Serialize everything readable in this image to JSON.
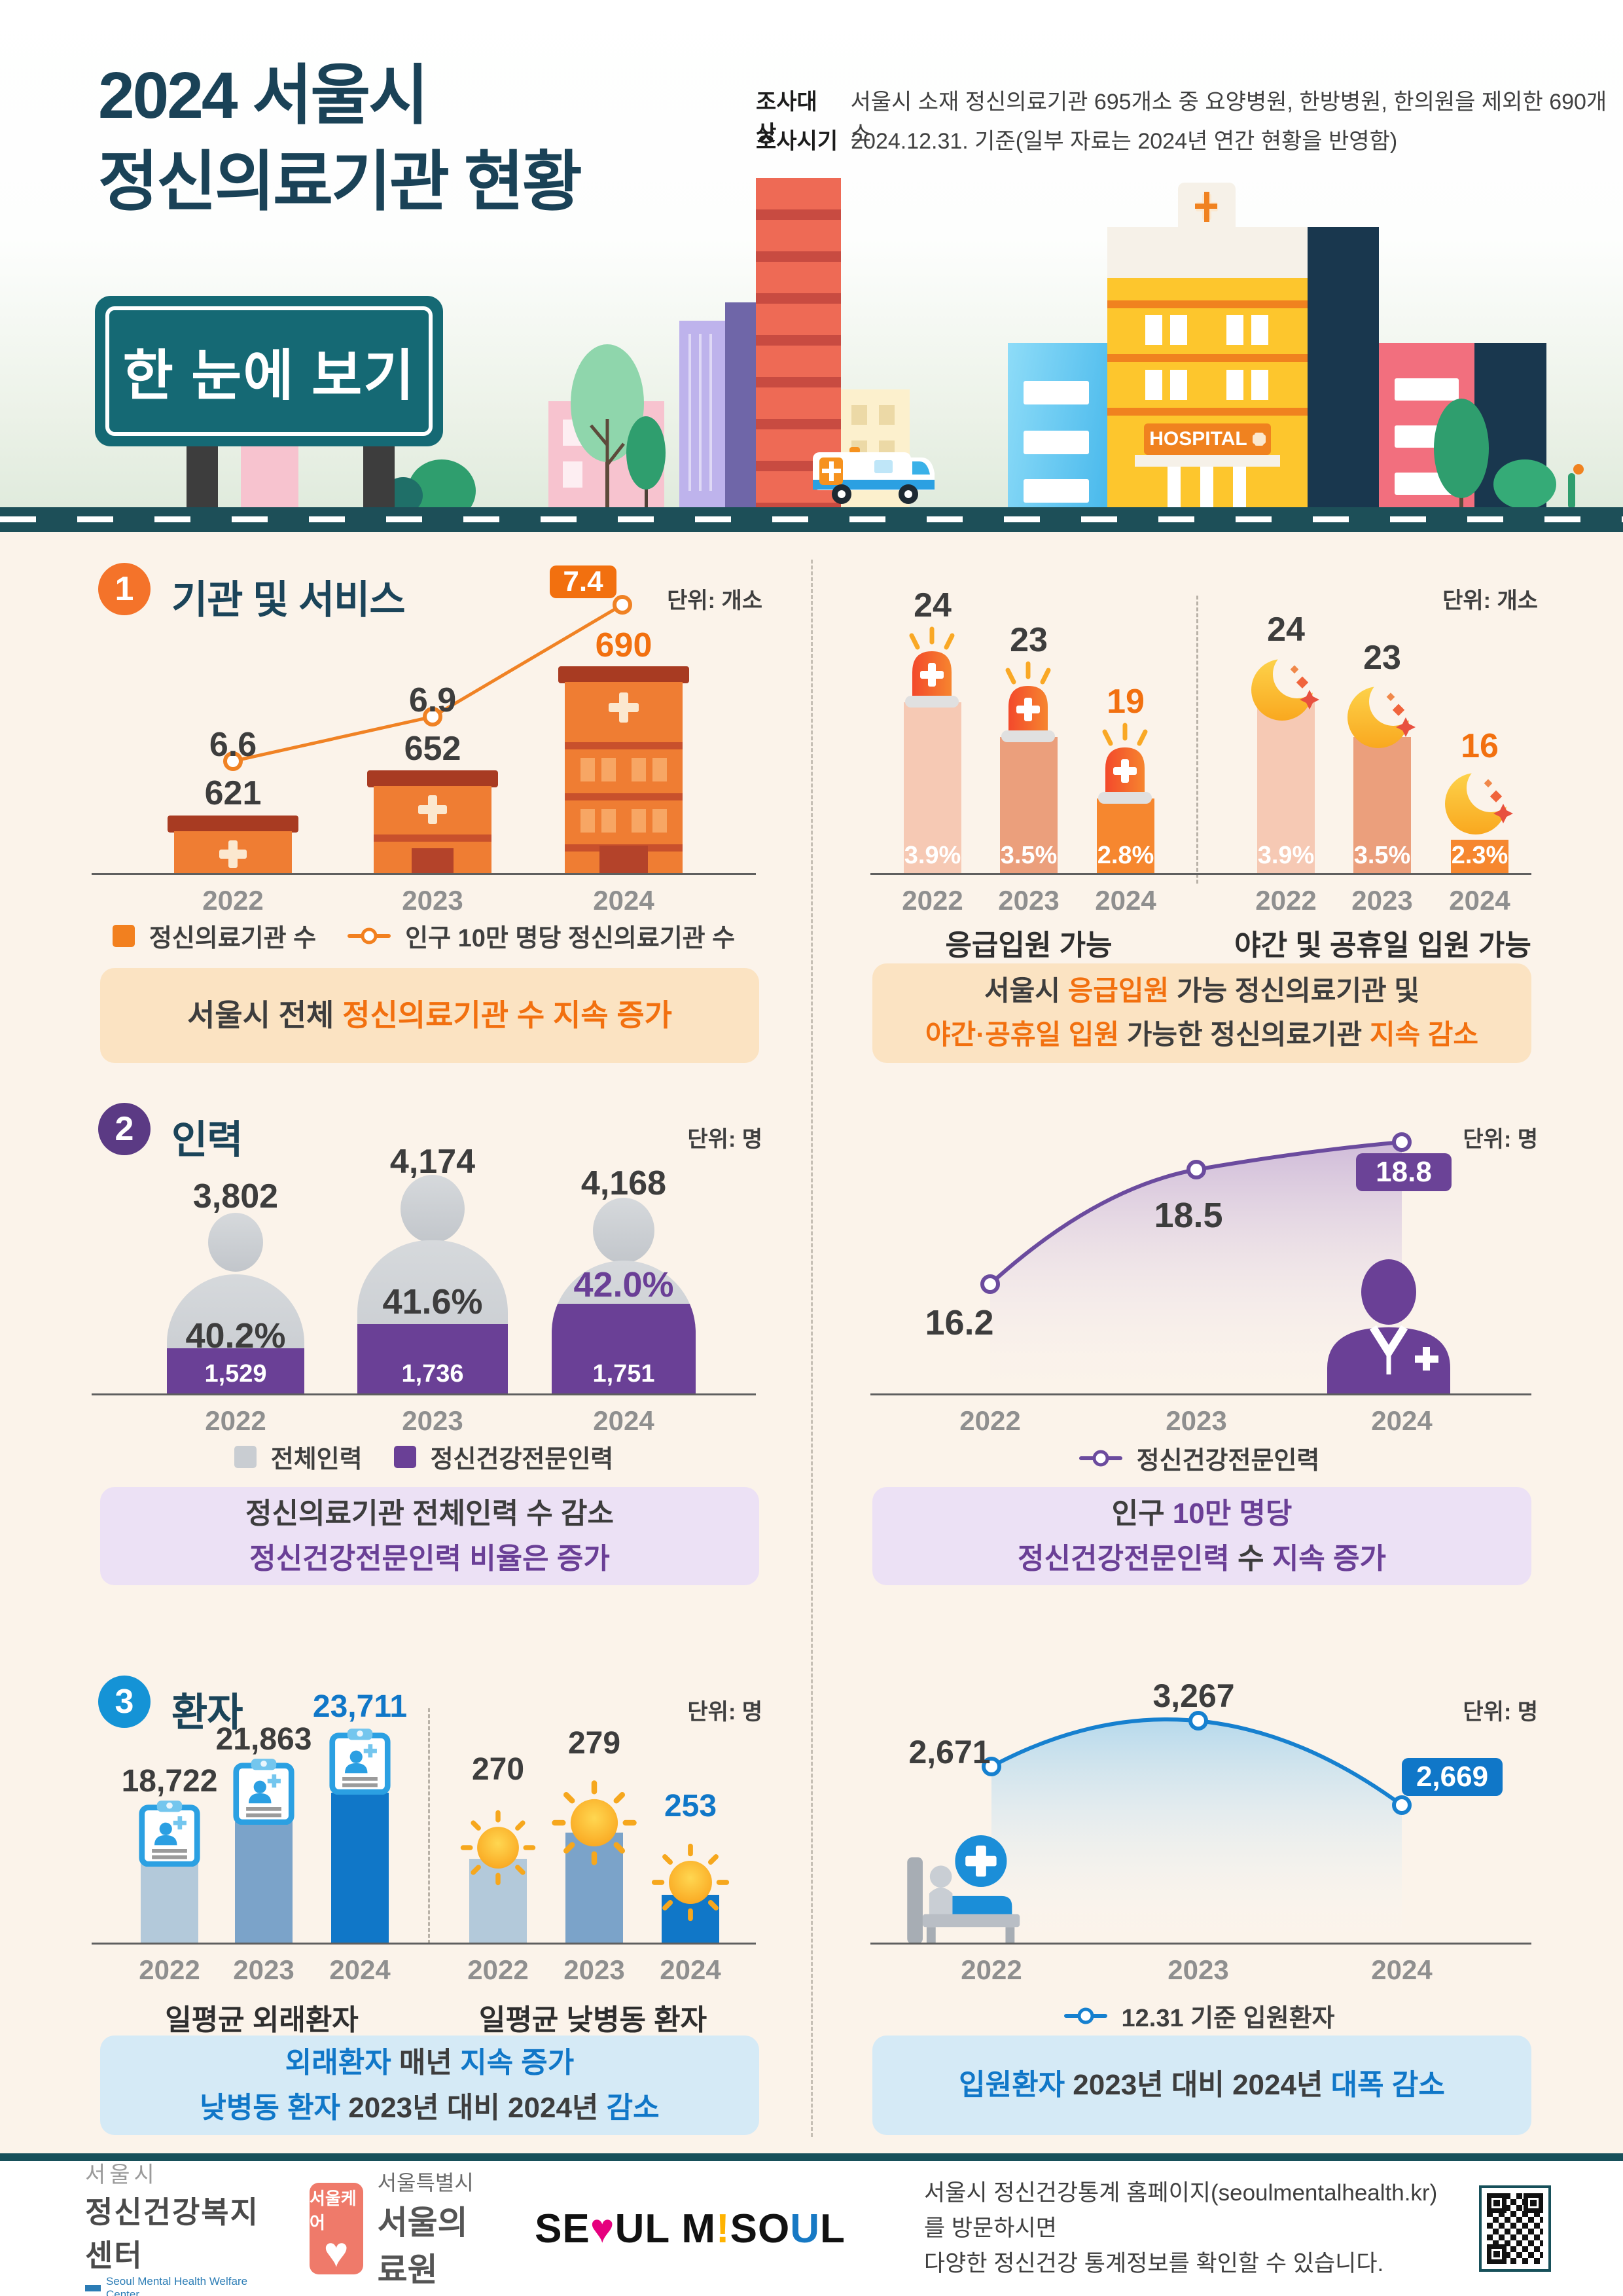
{
  "years": [
    "2022",
    "2023",
    "2024"
  ],
  "header": {
    "title1": "2024 서울시",
    "title2": "정신의료기관 현황",
    "survey1_label": "조사대상",
    "survey1": "서울시 소재 정신의료기관 695개소 중 요양병원, 한방병원, 한의원을 제외한 690개소",
    "survey2_label": "조사시기",
    "survey2": "2024.12.31. 기준(일부 자료는 2024년 연간 현황을 반영함)",
    "sign": "한 눈에 보기",
    "hospital": "HOSPITAL"
  },
  "sections": {
    "s1": {
      "number": "1",
      "title": "기관 및 서비스",
      "unit": "단위: 개소",
      "left": {
        "bars": [
          "621",
          "652",
          "690"
        ],
        "line": [
          "6.6",
          "6.9",
          "7.4"
        ],
        "legend_bar": "정신의료기관 수",
        "legend_line": "인구 10만 명당 정신의료기관 수",
        "caption": [
          [
            {
              "t": "서울시 전체 "
            },
            {
              "t": "정신의료기관 수 지속 증가",
              "a": true
            }
          ]
        ]
      },
      "right": {
        "group1": {
          "label": "응급입원 가능",
          "values": [
            "24",
            "23",
            "19"
          ],
          "pcts": [
            "3.9%",
            "3.5%",
            "2.8%"
          ]
        },
        "group2": {
          "label": "야간 및 공휴일 입원 가능",
          "values": [
            "24",
            "23",
            "16"
          ],
          "pcts": [
            "3.9%",
            "3.5%",
            "2.3%"
          ]
        },
        "caption": [
          [
            {
              "t": "서울시 "
            },
            {
              "t": "응급입원",
              "a": true
            },
            {
              "t": " 가능 정신의료기관 및"
            }
          ],
          [
            {
              "t": "야간·공휴일 입원",
              "a": true
            },
            {
              "t": " 가능한 정신의료기관 "
            },
            {
              "t": "지속 감소",
              "a": true
            }
          ]
        ]
      }
    },
    "s2": {
      "number": "2",
      "title": "인력",
      "unit": "단위: 명",
      "left": {
        "totals": [
          "3,802",
          "4,174",
          "4,168"
        ],
        "ratios": [
          "40.2%",
          "41.6%",
          "42.0%"
        ],
        "pros": [
          "1,529",
          "1,736",
          "1,751"
        ],
        "legend_total": "전체인력",
        "legend_pro": "정신건강전문인력",
        "caption": [
          [
            {
              "t": "정신의료기관 전체인력 수 감소"
            }
          ],
          [
            {
              "t": "정신건강전문인력 비율은 증가",
              "a": true
            }
          ]
        ]
      },
      "right": {
        "values": [
          "16.2",
          "18.5",
          "18.8"
        ],
        "legend": "정신건강전문인력",
        "caption": [
          [
            {
              "t": "인구 "
            },
            {
              "t": "10만 명당",
              "a": true
            }
          ],
          [
            {
              "t": "정신건강전문인력",
              "a": true
            },
            {
              "t": " 수 "
            },
            {
              "t": "지속 증가",
              "a": true
            }
          ]
        ]
      }
    },
    "s3": {
      "number": "3",
      "title": "환자",
      "unit": "단위: 명",
      "left": {
        "group1": {
          "label": "일평균 외래환자",
          "values": [
            "18,722",
            "21,863",
            "23,711"
          ]
        },
        "group2": {
          "label": "일평균 낮병동 환자",
          "values": [
            "270",
            "279",
            "253"
          ]
        },
        "caption": [
          [
            {
              "t": "외래환자",
              "a": true
            },
            {
              "t": " 매년 "
            },
            {
              "t": "지속 증가",
              "a": true
            }
          ],
          [
            {
              "t": "낮병동 환자",
              "a": true
            },
            {
              "t": " 2023년 대비 2024년 "
            },
            {
              "t": "감소",
              "a": true
            }
          ]
        ]
      },
      "right": {
        "values": [
          "2,671",
          "3,267",
          "2,669"
        ],
        "legend": "12.31 기준 입원환자",
        "caption": [
          [
            {
              "t": "입원환자",
              "a": true
            },
            {
              "t": " 2023년 대비 2024년 "
            },
            {
              "t": "대폭 감소",
              "a": true
            }
          ]
        ]
      }
    }
  },
  "footer": {
    "org1": {
      "top": "서울시",
      "bottom": "정신건강복지센터",
      "en": "Seoul Mental Health Welfare Center"
    },
    "org2": {
      "badge": "서울케어",
      "line1": "서울특별시",
      "line2": "서울의료원"
    },
    "brand": {
      "p1": "SE",
      "heart": "♥",
      "p2": "UL M",
      "bang": "!",
      "p3": "SO",
      "u": "U",
      "p4": "L"
    },
    "note1": "서울시 정신건강통계 홈페이지(seoulmentalhealth.kr)를 방문하시면",
    "note2": "다양한 정신건강 통계정보를 확인할 수 있습니다."
  },
  "chart_data": [
    {
      "type": "bar",
      "title": "정신의료기관 수 / 인구 10만 명당 정신의료기관 수",
      "unit": "개소",
      "categories": [
        2022,
        2023,
        2024
      ],
      "series": [
        {
          "name": "정신의료기관 수",
          "type": "bar",
          "values": [
            621,
            652,
            690
          ]
        },
        {
          "name": "인구 10만 명당 정신의료기관 수",
          "type": "line",
          "values": [
            6.6,
            6.9,
            7.4
          ]
        }
      ],
      "legend_position": "bottom"
    },
    {
      "type": "bar",
      "title": "응급입원 가능",
      "unit": "개소",
      "categories": [
        2022,
        2023,
        2024
      ],
      "values": [
        24,
        23,
        19
      ],
      "share_labels": [
        "3.9%",
        "3.5%",
        "2.8%"
      ]
    },
    {
      "type": "bar",
      "title": "야간 및 공휴일 입원 가능",
      "unit": "개소",
      "categories": [
        2022,
        2023,
        2024
      ],
      "values": [
        24,
        23,
        16
      ],
      "share_labels": [
        "3.9%",
        "3.5%",
        "2.3%"
      ]
    },
    {
      "type": "bar",
      "title": "정신의료기관 인력",
      "unit": "명",
      "categories": [
        2022,
        2023,
        2024
      ],
      "series": [
        {
          "name": "전체인력",
          "values": [
            3802,
            4174,
            4168
          ]
        },
        {
          "name": "정신건강전문인력",
          "values": [
            1529,
            1736,
            1751
          ]
        }
      ],
      "ratio_labels": [
        "40.2%",
        "41.6%",
        "42.0%"
      ]
    },
    {
      "type": "line",
      "title": "인구 10만 명당 정신건강전문인력",
      "unit": "명",
      "categories": [
        2022,
        2023,
        2024
      ],
      "values": [
        16.2,
        18.5,
        18.8
      ]
    },
    {
      "type": "bar",
      "title": "일평균 외래환자",
      "unit": "명",
      "categories": [
        2022,
        2023,
        2024
      ],
      "values": [
        18722,
        21863,
        23711
      ]
    },
    {
      "type": "bar",
      "title": "일평균 낮병동 환자",
      "unit": "명",
      "categories": [
        2022,
        2023,
        2024
      ],
      "values": [
        270,
        279,
        253
      ]
    },
    {
      "type": "line",
      "title": "12.31 기준 입원환자",
      "unit": "명",
      "categories": [
        2022,
        2023,
        2024
      ],
      "values": [
        2671,
        3267,
        2669
      ]
    }
  ]
}
